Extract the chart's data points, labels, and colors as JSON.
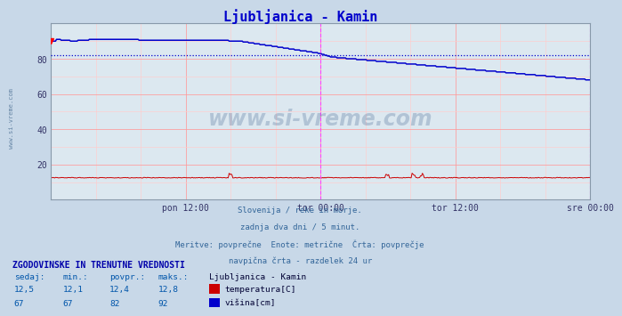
{
  "title": "Ljubljanica - Kamin",
  "title_color": "#0000cc",
  "bg_color": "#c8d8e8",
  "plot_bg_color": "#dce8f0",
  "grid_color_major": "#ff9999",
  "grid_color_minor": "#ffcccc",
  "x_ticks_labels": [
    "pon 12:00",
    "tor 00:00",
    "tor 12:00",
    "sre 00:00"
  ],
  "x_ticks_pos": [
    0.25,
    0.5,
    0.75,
    1.0
  ],
  "y_ticks": [
    20,
    40,
    60,
    80
  ],
  "ylim": [
    0,
    100
  ],
  "temp_color": "#cc0000",
  "height_color": "#0000cc",
  "avg_line_color": "#0000cc",
  "avg_value": 82,
  "vertical_line_color": "#ff44ff",
  "vertical_line_x": 0.5,
  "right_line_color": "#ff44ff",
  "right_line_x": 1.0,
  "watermark_text": "www.si-vreme.com",
  "watermark_color": "#335588",
  "watermark_alpha": 0.25,
  "subtitle_lines": [
    "Slovenija / reke in morje.",
    "zadnja dva dni / 5 minut.",
    "Meritve: povprečne  Enote: metrične  Črta: povprečje",
    "navpična črta - razdelek 24 ur"
  ],
  "table_header": "ZGODOVINSKE IN TRENUTNE VREDNOSTI",
  "table_cols": [
    "sedaj:",
    "min.:",
    "povpr.:",
    "maks.:"
  ],
  "temp_row": [
    "12,5",
    "12,1",
    "12,4",
    "12,8"
  ],
  "height_row": [
    "67",
    "67",
    "82",
    "92"
  ],
  "label_temp": "temperatura[C]",
  "label_height": "višina[cm]",
  "station_label": "Ljubljanica - Kamin",
  "left_label": "www.si-vreme.com",
  "n_points": 576
}
